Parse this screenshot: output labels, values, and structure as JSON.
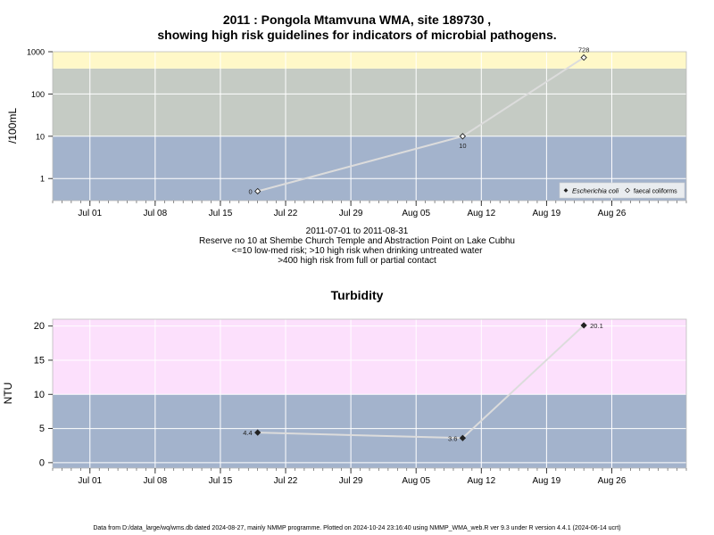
{
  "top_title_line1": "2011 : Pongola Mtamvuna WMA, site 189730 ,",
  "top_title_line2": "showing high risk guidelines for indicators of microbial pathogens.",
  "top_sub_lines": [
    "2011-07-01 to 2011-08-31",
    "Reserve no 10 at Shembe Church Temple and Abstraction Point on Lake Cubhu",
    "<=10 low-med risk; >10 high risk when drinking untreated water",
    ">400 high risk from full or partial contact"
  ],
  "bottom_title": "Turbidity",
  "footer": "Data from D:/data_large/wq/wms.db dated 2024-08-27, mainly NMMP programme. Plotted on 2024-10-24 23:16:40 using NMMP_WMA_web.R ver 9.3 under R version 4.4.1 (2024-06-14 ucrt)",
  "colors": {
    "low_band": "#a3b3cc",
    "mid_band": "#c5cbc4",
    "high_band": "#fff8c8",
    "turbidity_high": "#fce0fc",
    "line": "#dcdcdc",
    "grid": "#ffffff",
    "point": "#000000"
  },
  "chart_data": [
    {
      "type": "line",
      "ylabel": "/100mL",
      "y_scale": "log",
      "ylim": [
        0.3,
        1000
      ],
      "xlim": [
        "2011-06-27",
        "2011-09-03"
      ],
      "x_ticks": [
        "Jul 01",
        "Jul 08",
        "Jul 15",
        "Jul 22",
        "Jul 29",
        "Aug 05",
        "Aug 12",
        "Aug 19",
        "Aug 26"
      ],
      "x_tick_dates": [
        "2011-07-01",
        "2011-07-08",
        "2011-07-15",
        "2011-07-22",
        "2011-07-29",
        "2011-08-05",
        "2011-08-12",
        "2011-08-19",
        "2011-08-26"
      ],
      "y_ticks": [
        1,
        10,
        100,
        1000
      ],
      "y_tick_labels": [
        "1",
        "10",
        "100",
        "1000"
      ],
      "bands": [
        {
          "from": 0.3,
          "to": 10,
          "color": "#a3b3cc"
        },
        {
          "from": 10,
          "to": 400,
          "color": "#c5cbc4"
        },
        {
          "from": 400,
          "to": 1000,
          "color": "#fff8c8"
        }
      ],
      "legend": {
        "position": "bottom-right",
        "entries": [
          "Escherichia coli",
          "faecal coliforms"
        ]
      },
      "series": [
        {
          "name": "faecal coliforms",
          "marker": "open-diamond",
          "points": [
            {
              "x": "2011-07-19",
              "y": 0.5,
              "label": "0"
            },
            {
              "x": "2011-08-10",
              "y": 10,
              "label": "10"
            },
            {
              "x": "2011-08-23",
              "y": 728,
              "label": "728"
            }
          ]
        }
      ]
    },
    {
      "type": "line",
      "title": "Turbidity",
      "ylabel": "NTU",
      "ylim": [
        -0.8,
        21
      ],
      "xlim": [
        "2011-06-27",
        "2011-09-03"
      ],
      "x_ticks": [
        "Jul 01",
        "Jul 08",
        "Jul 15",
        "Jul 22",
        "Jul 29",
        "Aug 05",
        "Aug 12",
        "Aug 19",
        "Aug 26"
      ],
      "x_tick_dates": [
        "2011-07-01",
        "2011-07-08",
        "2011-07-15",
        "2011-07-22",
        "2011-07-29",
        "2011-08-05",
        "2011-08-12",
        "2011-08-19",
        "2011-08-26"
      ],
      "y_ticks": [
        0,
        5,
        10,
        15,
        20
      ],
      "y_tick_labels": [
        "0",
        "5",
        "10",
        "15",
        "20"
      ],
      "bands": [
        {
          "from": -0.8,
          "to": 10,
          "color": "#a3b3cc"
        },
        {
          "from": 10,
          "to": 21,
          "color": "#fce0fc"
        }
      ],
      "series": [
        {
          "marker": "filled-diamond",
          "points": [
            {
              "x": "2011-07-19",
              "y": 4.4,
              "label": "4.4"
            },
            {
              "x": "2011-08-10",
              "y": 3.6,
              "label": "3.6"
            },
            {
              "x": "2011-08-23",
              "y": 20.1,
              "label": "20.1"
            }
          ]
        }
      ]
    }
  ]
}
